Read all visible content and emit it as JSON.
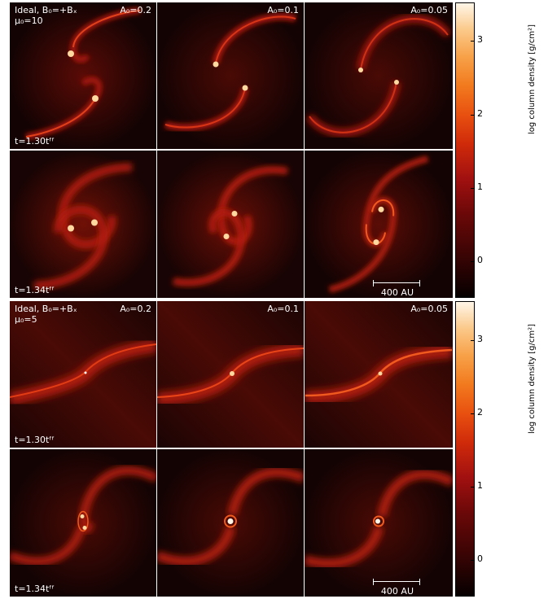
{
  "figure": {
    "top": {
      "header": "Ideal, B₀=+Bₓ",
      "mu": "μ₀=10",
      "cols": [
        "A₀=0.2",
        "A₀=0.1",
        "A₀=0.05"
      ],
      "times": [
        "t=1.30tᶠᶠ",
        "t=1.34tᶠᶠ"
      ]
    },
    "bottom": {
      "header": "Ideal, B₀=+Bₓ",
      "mu": "μ₀=5",
      "cols": [
        "A₀=0.2",
        "A₀=0.1",
        "A₀=0.05"
      ],
      "times": [
        "t=1.30tᶠᶠ",
        "t=1.34tᶠᶠ"
      ]
    },
    "scalebar": "400 AU",
    "colorbar": {
      "label": "log column density [g/cm²]",
      "ticks": [
        "0",
        "1",
        "2",
        "3"
      ]
    },
    "colors": {
      "bg": "#140303",
      "arm": "#c81e0a",
      "core": "#ffd9a0"
    }
  }
}
